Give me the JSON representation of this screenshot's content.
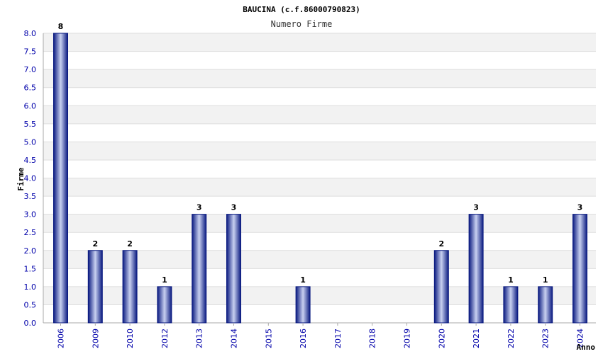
{
  "chart_data": {
    "type": "bar",
    "title": "BAUCINA (c.f.86000790823)",
    "subtitle": "Numero Firme",
    "xlabel": "Anno",
    "ylabel": "Firme",
    "categories": [
      "2006",
      "2009",
      "2010",
      "2012",
      "2013",
      "2014",
      "2015",
      "2016",
      "2017",
      "2018",
      "2019",
      "2020",
      "2021",
      "2022",
      "2023",
      "2024"
    ],
    "values": [
      8,
      2,
      2,
      1,
      3,
      3,
      null,
      1,
      null,
      null,
      null,
      2,
      3,
      1,
      1,
      3
    ],
    "data_labels": [
      "8",
      "2",
      "2",
      "1",
      "3",
      "3",
      "",
      "1",
      "",
      "",
      "",
      "2",
      "3",
      "1",
      "1",
      "3"
    ],
    "ylim": [
      0,
      8
    ],
    "yticks": [
      "0.0",
      "0.5",
      "1.0",
      "1.5",
      "2.0",
      "2.5",
      "3.0",
      "3.5",
      "4.0",
      "4.5",
      "5.0",
      "5.5",
      "6.0",
      "6.5",
      "7.0",
      "7.5",
      "8.0"
    ],
    "grid": true,
    "colors": {
      "bar": "#1a2a99",
      "grid_band": "#f2f2f2",
      "tick_text": "#0000aa"
    }
  }
}
